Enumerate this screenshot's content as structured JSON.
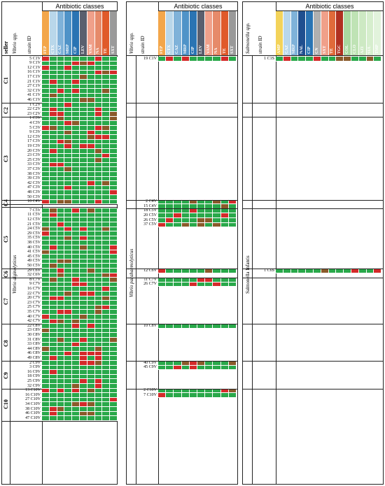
{
  "header": {
    "title": "Antibiotic classes"
  },
  "labels": {
    "seller": "seller",
    "strain_id": "strain ID",
    "vibrio_spp": "Vibrio spp.",
    "salmonella_spp": "Salmonella spp.",
    "species_alg": "Vibrio alginolyticus",
    "species_para": "Vibrio parahaemolyticus",
    "species_sal": "Salmonella Infantis"
  },
  "panel1": {
    "antibiotics": [
      "FEP",
      "CTX",
      "CAZ",
      "MRP",
      "CIP",
      "LEV",
      "VAM",
      "NA",
      "TE",
      "SXT"
    ],
    "colors": [
      "#f3a64a",
      "#b9d7ea",
      "#7fb2d9",
      "#4f93c8",
      "#2a74b3",
      "#5a5f6e",
      "#f0a08a",
      "#e68a6a",
      "#e05a2a",
      "#9a9a9a"
    ],
    "groups": [
      {
        "name": "C1",
        "rows": [
          "5 C1V",
          "9 C1V",
          "12 C1V",
          "16 C1V",
          "17 C1V",
          "21 C1V",
          "27 C1V",
          "32 C1V",
          "41 C1V",
          "46 C1V"
        ]
      },
      {
        "name": "C2",
        "rows": [
          "1 C2V",
          "22 C2V",
          "23 C2V"
        ]
      },
      {
        "name": "C3",
        "rows": [
          "1 C3V",
          "4 C3V",
          "5 C3V",
          "9 C3V",
          "12 C3V",
          "17 C3V",
          "19 C3V",
          "20 C3V",
          "23 C3V",
          "25 C3V",
          "33 C3V",
          "37 C3V",
          "38 C3V",
          "39 C3V",
          "42 C3V",
          "47 C3V",
          "48 C3V",
          "50 C3V"
        ]
      },
      {
        "name": "C4",
        "rows": [
          "10 C4V"
        ]
      },
      {
        "name": "C5",
        "rows": [
          "7 C5V",
          "11 C5V",
          "12 C5V",
          "21 C5V",
          "24 C5V",
          "29 C5V",
          "35 C5V",
          "38 C5V",
          "40 C5V",
          "41 C5V",
          "45 C5V",
          "49 C5V",
          "50 C5V"
        ]
      },
      {
        "name": "C6",
        "rows": [
          "29 C6V",
          "32 C6V"
        ]
      },
      {
        "name": "C7",
        "rows": [
          "8 C7V",
          "9 C7V",
          "16 C7V",
          "22 C7V",
          "20 C7V",
          "23 C7V",
          "25 C7V",
          "35 C7V",
          "40 C7V",
          "42 C7V"
        ]
      },
      {
        "name": "C8",
        "rows": [
          "22 C8V",
          "23 C8V",
          "30 C8V",
          "31 C8V",
          "33 C8V",
          "44 C8V",
          "46 C8V",
          "49 C8V"
        ]
      },
      {
        "name": "C9",
        "rows": [
          "2 C9V",
          "3 C9V",
          "16 C9V",
          "18 C9V",
          "25 C9V",
          "32 C9V"
        ]
      },
      {
        "name": "C10",
        "rows": [
          "13 C10V",
          "16 C10V",
          "27 C10V",
          "34 C10V",
          "38 C10V",
          "46 C10V",
          "47 C10V"
        ]
      }
    ]
  },
  "panel2": {
    "antibiotics": [
      "FEP",
      "CTX",
      "CAZ",
      "MRP",
      "CIP",
      "LEV",
      "VAM",
      "NA",
      "TE",
      "SXT"
    ],
    "rows": [
      {
        "group": "C1",
        "ids": [
          "19 C1V"
        ]
      },
      {
        "group": "C4",
        "ids": [
          "2 C4V",
          "15 C4V",
          "18 C5V",
          "20 C5V",
          "26 C5V",
          "37 C5V"
        ]
      },
      {
        "group": "C6",
        "ids": [
          "12 C6V"
        ]
      },
      {
        "group": "C7",
        "ids": [
          "11 C7V",
          "26 C7V"
        ]
      },
      {
        "group": "C8",
        "ids": [
          "10 C8V"
        ]
      },
      {
        "group": "C9",
        "ids": [
          "40 C9V",
          "45 C9V"
        ]
      },
      {
        "group": "C10",
        "ids": [
          "2 C10V",
          "7 C10V"
        ]
      }
    ]
  },
  "panel3": {
    "antibiotics": [
      "AMP",
      "CAZ",
      "MRP",
      "NAL",
      "CIP",
      "CN",
      "SXT",
      "TE",
      "TGC",
      "COL",
      "CLO",
      "AZI",
      "SUL",
      "TMP"
    ],
    "colors": [
      "#f3d35a",
      "#b9d7ea",
      "#7fb2d9",
      "#1f4f8f",
      "#2a74b3",
      "#b0b0b0",
      "#f0a08a",
      "#e06a3a",
      "#b03020",
      "#a9d9a0",
      "#bfe3b5",
      "#cde9c3",
      "#d6eecd",
      "#e2f3dc"
    ],
    "rows": [
      {
        "group": "C1",
        "ids": [
          "1 C1S"
        ]
      },
      {
        "group": "C6",
        "ids": [
          "1 C6S"
        ]
      }
    ]
  },
  "legend": {
    "resistant": "#d42a2a",
    "intermediate": "#8a5a2a",
    "susceptible": "#29a84a"
  }
}
